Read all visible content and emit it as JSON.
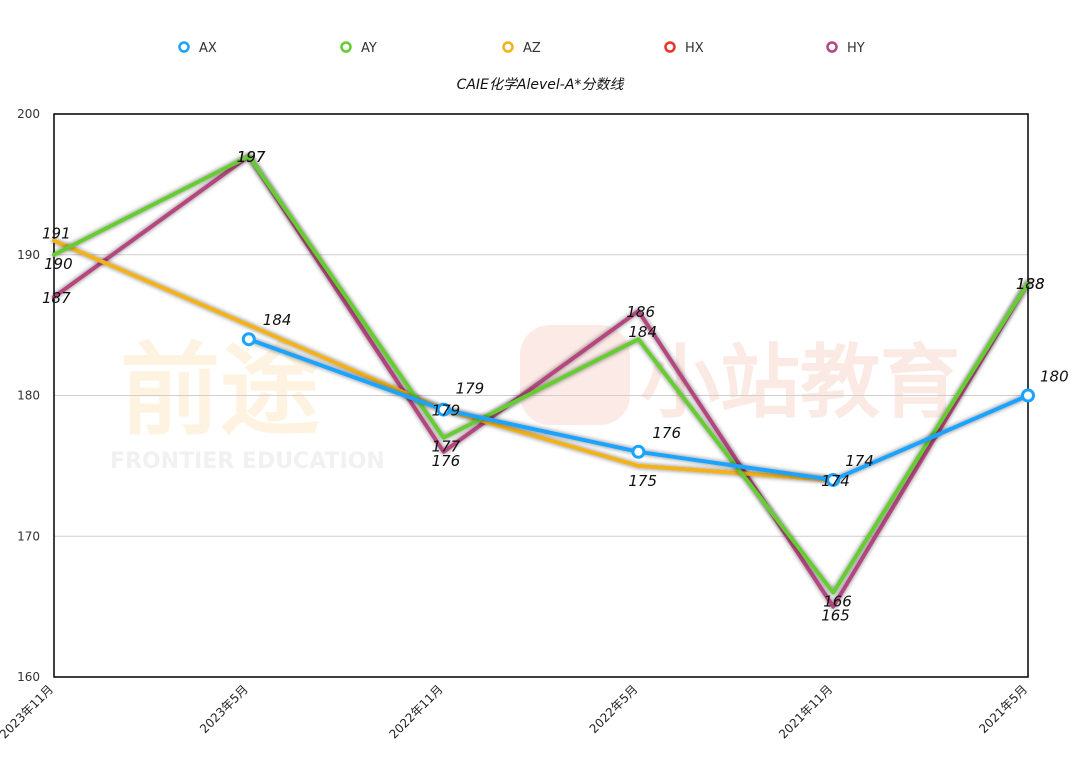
{
  "colors": {
    "AX": "#1aa3ff",
    "AY": "#66cc33",
    "AZ": "#f2b21a",
    "HX": "#e8342a",
    "HY": "#b5467f"
  },
  "watermark": {
    "left_text": "前途",
    "left_sub": "FRONTIER EDUCATION",
    "right_text": "小站教育"
  },
  "chart_data": {
    "type": "line",
    "title": "CAIE化学Alevel-A*分数线",
    "categories": [
      "2023年11月",
      "2023年5月",
      "2022年11月",
      "2022年5月",
      "2021年11月",
      "2021年5月"
    ],
    "ylim": [
      160,
      200
    ],
    "yticks": [
      160,
      170,
      180,
      190,
      200
    ],
    "grid": true,
    "legend_position": "top",
    "series": [
      {
        "name": "AX",
        "values": [
          null,
          184,
          179,
          176,
          174,
          180
        ]
      },
      {
        "name": "AY",
        "values": [
          190,
          197,
          177,
          184,
          166,
          188
        ]
      },
      {
        "name": "AZ",
        "values": [
          191,
          null,
          179,
          175,
          174,
          null
        ]
      },
      {
        "name": "HX",
        "values": [
          null,
          null,
          null,
          null,
          null,
          null
        ]
      },
      {
        "name": "HY",
        "values": [
          187,
          197,
          176,
          186,
          165,
          188
        ]
      }
    ]
  }
}
